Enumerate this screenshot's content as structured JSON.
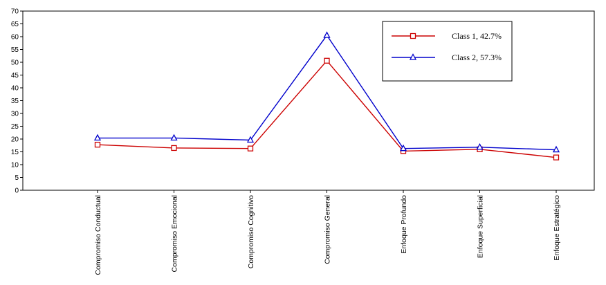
{
  "chart_data": {
    "type": "line",
    "title": "",
    "xlabel": "",
    "ylabel": "",
    "ylim": [
      0,
      70
    ],
    "yticks": [
      0,
      5,
      10,
      15,
      20,
      25,
      30,
      35,
      40,
      45,
      50,
      55,
      60,
      65,
      70
    ],
    "categories": [
      "Compromiso Conductual",
      "Compromiso Emocional",
      "Compromiso Cognitivo",
      "Compromiso General",
      "Enfoque Profundo",
      "Enfoque Superficial",
      "Enfoque Estratégico"
    ],
    "series": [
      {
        "name": "Class 1, 42.7%",
        "color": "#cc0000",
        "marker": "square",
        "values": [
          17.8,
          16.5,
          16.3,
          50.6,
          15.3,
          16.0,
          12.8
        ]
      },
      {
        "name": "Class 2, 57.3%",
        "color": "#0000cc",
        "marker": "triangle",
        "values": [
          20.4,
          20.4,
          19.6,
          60.5,
          16.3,
          16.8,
          15.8
        ]
      }
    ],
    "grid": false,
    "legend_position": "top-right"
  }
}
